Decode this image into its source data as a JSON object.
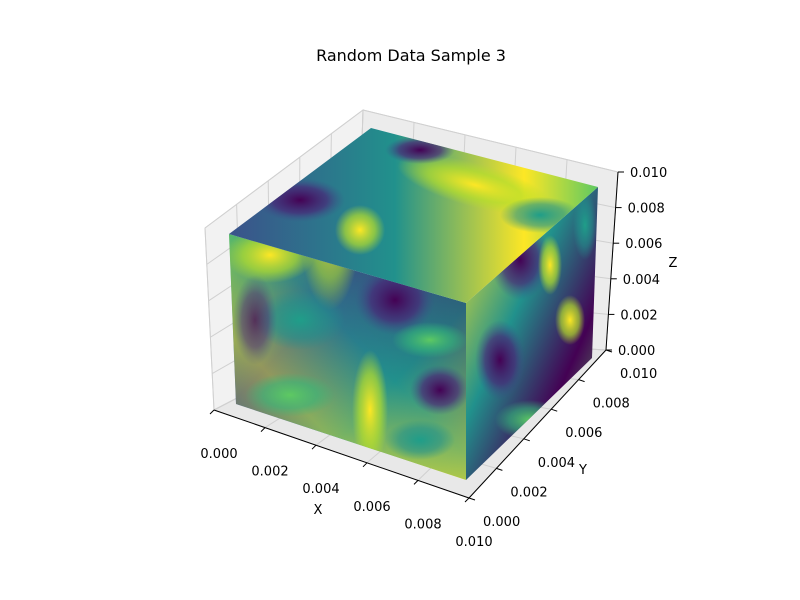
{
  "chart_data": {
    "type": "scatter",
    "title": "Random Data Sample 3",
    "xlabel": "X",
    "ylabel": "Y",
    "zlabel": "Z",
    "xlim": [
      0,
      0.01
    ],
    "ylim": [
      0,
      0.01
    ],
    "zlim": [
      0,
      0.01
    ],
    "x_ticks": [
      "0.000",
      "0.002",
      "0.004",
      "0.006",
      "0.008",
      "0.010"
    ],
    "y_ticks": [
      "0.000",
      "0.002",
      "0.004",
      "0.006",
      "0.008",
      "0.010"
    ],
    "z_ticks": [
      "0.000",
      "0.002",
      "0.004",
      "0.006",
      "0.008",
      "0.010"
    ],
    "colormap": "viridis",
    "grid": true,
    "marker": "cube-shaped dense point cloud",
    "colors": {
      "pane": "#f2f2f2",
      "grid": "#d9d9d9",
      "axis": "#000000",
      "viridis": [
        "#440154",
        "#3b528b",
        "#21918c",
        "#5ec962",
        "#fde725"
      ]
    }
  }
}
